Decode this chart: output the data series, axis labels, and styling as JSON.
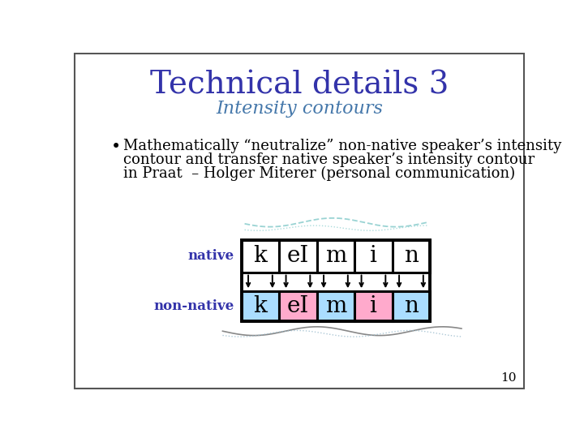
{
  "title": "Technical details 3",
  "subtitle": "Intensity contours",
  "title_color": "#3333aa",
  "subtitle_color": "#4477aa",
  "bullet_text_line1": "Mathematically “neutralize” non-native speaker’s intensity",
  "bullet_text_line2": "contour and transfer native speaker’s intensity contour",
  "bullet_text_line3": "in Praat  – Holger Miterer (personal communication)",
  "labels": [
    "k",
    "eI",
    "m",
    "i",
    "n"
  ],
  "native_label": "native",
  "nonnative_label": "non-native",
  "label_color": "#3333aa",
  "native_bg": "#ffffff",
  "nonnative_colors": [
    "#aaddff",
    "#ffaacc",
    "#aaddff",
    "#ffaacc",
    "#aaddff"
  ],
  "box_color": "#000000",
  "background_color": "#ffffff",
  "border_color": "#555555",
  "page_number": "10",
  "arrow_color": "#000000",
  "wave_color_top": "#88cccc",
  "wave_color_top2": "#88cccc",
  "wave_color_bottom": "#888888",
  "wave_color_bottom2": "#99bbcc"
}
